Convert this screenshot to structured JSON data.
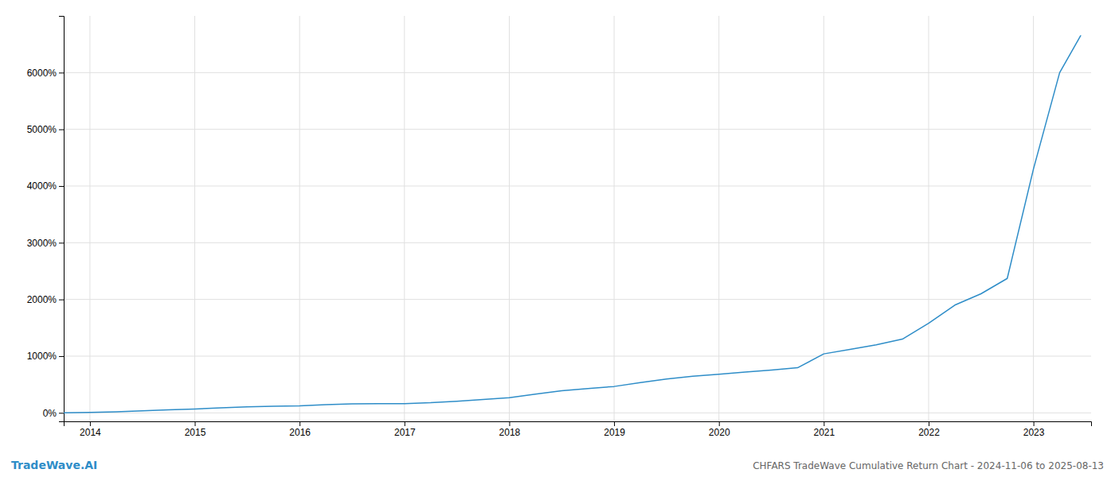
{
  "chart_data": {
    "type": "line",
    "title": "CHFARS TradeWave Cumulative Return Chart - 2024-11-06 to 2025-08-13",
    "annotations": [
      "TradeWave.AI"
    ],
    "color": "#2e8dc8",
    "x": [
      2013.75,
      2014.0,
      2014.25,
      2014.5,
      2014.75,
      2015.0,
      2015.25,
      2015.5,
      2015.75,
      2016.0,
      2016.25,
      2016.5,
      2016.75,
      2017.0,
      2017.25,
      2017.5,
      2017.75,
      2018.0,
      2018.25,
      2018.5,
      2018.75,
      2019.0,
      2019.25,
      2019.5,
      2019.75,
      2020.0,
      2020.25,
      2020.5,
      2020.75,
      2021.0,
      2021.25,
      2021.5,
      2021.75,
      2022.0,
      2022.25,
      2022.5,
      2022.75,
      2023.0,
      2023.25,
      2023.45
    ],
    "values": [
      0,
      8,
      18,
      35,
      55,
      68,
      88,
      105,
      118,
      125,
      145,
      158,
      162,
      162,
      178,
      205,
      235,
      268,
      330,
      390,
      430,
      465,
      535,
      595,
      645,
      680,
      718,
      755,
      795,
      1040,
      1120,
      1200,
      1300,
      1580,
      1900,
      2100,
      2370,
      4300,
      6000,
      6650
    ],
    "xlim": [
      2013.75,
      2023.55
    ],
    "ylim": [
      -150,
      7000
    ],
    "xticks": [
      2014,
      2015,
      2016,
      2017,
      2018,
      2019,
      2020,
      2021,
      2022,
      2023
    ],
    "yticks": [
      {
        "value": 0,
        "label": "0%"
      },
      {
        "value": 1000,
        "label": "1000%"
      },
      {
        "value": 2000,
        "label": "2000%"
      },
      {
        "value": 3000,
        "label": "3000%"
      },
      {
        "value": 4000,
        "label": "4000%"
      },
      {
        "value": 5000,
        "label": "5000%"
      },
      {
        "value": 6000,
        "label": "6000%"
      }
    ],
    "grid": true
  }
}
